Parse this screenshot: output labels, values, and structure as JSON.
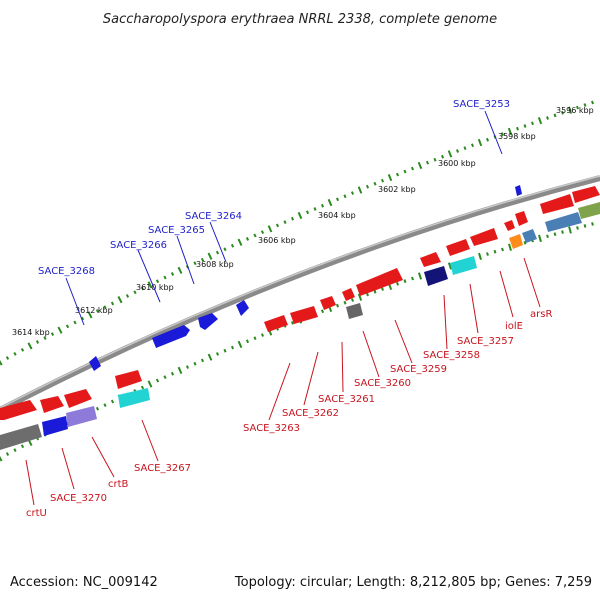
{
  "title": "Saccharopolyspora erythraea NRRL 2338, complete genome",
  "footer": {
    "accession": "Accession: NC_009142",
    "summary": "Topology: circular; Length: 8,212,805 bp; Genes: 7,259"
  },
  "colors": {
    "backbone": "#8a8a8a",
    "tick": "#2a8a1e",
    "forward_gene": "#2020e0",
    "reverse_gene": "#e41a1a",
    "blue_label": "#1f1fc8",
    "red_label": "#c8141e"
  },
  "tick_labels": [
    "3596 kbp",
    "3598 kbp",
    "3600 kbp",
    "3602 kbp",
    "3604 kbp",
    "3606 kbp",
    "3608 kbp",
    "3610 kbp",
    "3612 kbp",
    "3614 kbp"
  ],
  "labels_outer": [
    "SACE_3253",
    "SACE_3264",
    "SACE_3265",
    "SACE_3266",
    "SACE_3268"
  ],
  "labels_inner": [
    "arsR",
    "iolE",
    "SACE_3257",
    "SACE_3258",
    "SACE_3259",
    "SACE_3260",
    "SACE_3261",
    "SACE_3262",
    "SACE_3263",
    "SACE_3267",
    "crtB",
    "SACE_3270",
    "crtU"
  ]
}
